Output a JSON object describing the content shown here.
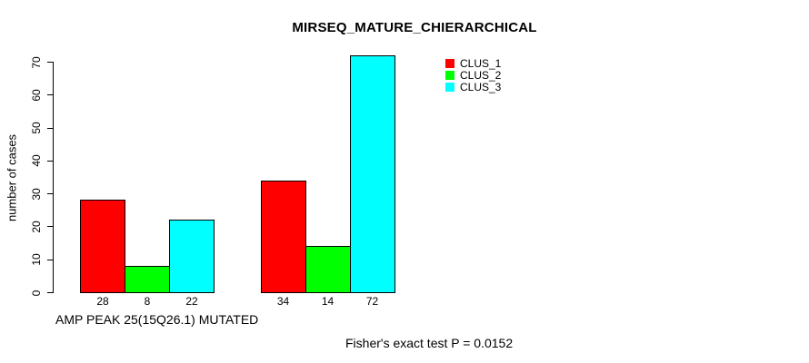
{
  "chart_data": {
    "type": "bar",
    "title": "MIRSEQ_MATURE_CHIERARCHICAL",
    "xlabel": "AMP PEAK 25(15Q26.1) MUTATED",
    "ylabel": "number of cases",
    "ylim": [
      0,
      70
    ],
    "yticks": [
      0,
      10,
      20,
      30,
      40,
      50,
      60,
      70
    ],
    "group_count": 2,
    "series": [
      {
        "name": "CLUS_1",
        "color": "#ff0000",
        "values": [
          28,
          34
        ]
      },
      {
        "name": "CLUS_2",
        "color": "#00ff00",
        "values": [
          8,
          14
        ]
      },
      {
        "name": "CLUS_3",
        "color": "#00ffff",
        "values": [
          22,
          72
        ]
      }
    ],
    "bar_value_labels": [
      [
        "28",
        "8",
        "22"
      ],
      [
        "34",
        "14",
        "72"
      ]
    ],
    "legend_position": "top-right",
    "grid": false,
    "background": "#ffffff",
    "axis_color": "#000000"
  },
  "footnote": "Fisher's exact test P = 0.0152"
}
